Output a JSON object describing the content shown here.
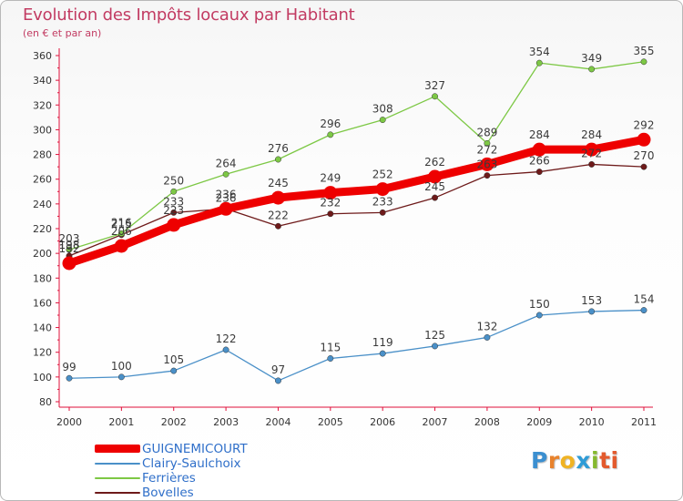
{
  "header": {
    "title": "Evolution des Impôts locaux par Habitant",
    "subtitle": "(en € et par an)"
  },
  "logo": {
    "letters": [
      "P",
      "r",
      "o",
      "x",
      "i",
      "ti"
    ]
  },
  "chart_data": {
    "type": "line",
    "x": [
      "2000",
      "2001",
      "2002",
      "2003",
      "2004",
      "2005",
      "2006",
      "2007",
      "2008",
      "2009",
      "2010",
      "2011"
    ],
    "ylim": [
      80,
      360
    ],
    "yticks": [
      80,
      100,
      120,
      140,
      160,
      180,
      200,
      220,
      240,
      260,
      280,
      300,
      320,
      340,
      360
    ],
    "grid": false,
    "legend_position": "bottom-left",
    "series": [
      {
        "name": "GUIGNEMICOURT",
        "color": "#ee0000",
        "weight": "heavy",
        "values": [
          192,
          206,
          223,
          236,
          245,
          249,
          252,
          262,
          272,
          284,
          284,
          292
        ]
      },
      {
        "name": "Clairy-Saulchoix",
        "color": "#4a90c8",
        "weight": "thin",
        "values": [
          99,
          100,
          105,
          122,
          97,
          115,
          119,
          125,
          132,
          150,
          153,
          154
        ]
      },
      {
        "name": "Ferrières",
        "color": "#7dc845",
        "weight": "thin",
        "values": [
          203,
          216,
          250,
          264,
          276,
          296,
          308,
          327,
          289,
          354,
          349,
          355
        ]
      },
      {
        "name": "Bovelles",
        "color": "#6e1a1a",
        "weight": "thin",
        "values": [
          198,
          215,
          233,
          236,
          222,
          232,
          233,
          245,
          263,
          266,
          272,
          270
        ]
      }
    ]
  }
}
